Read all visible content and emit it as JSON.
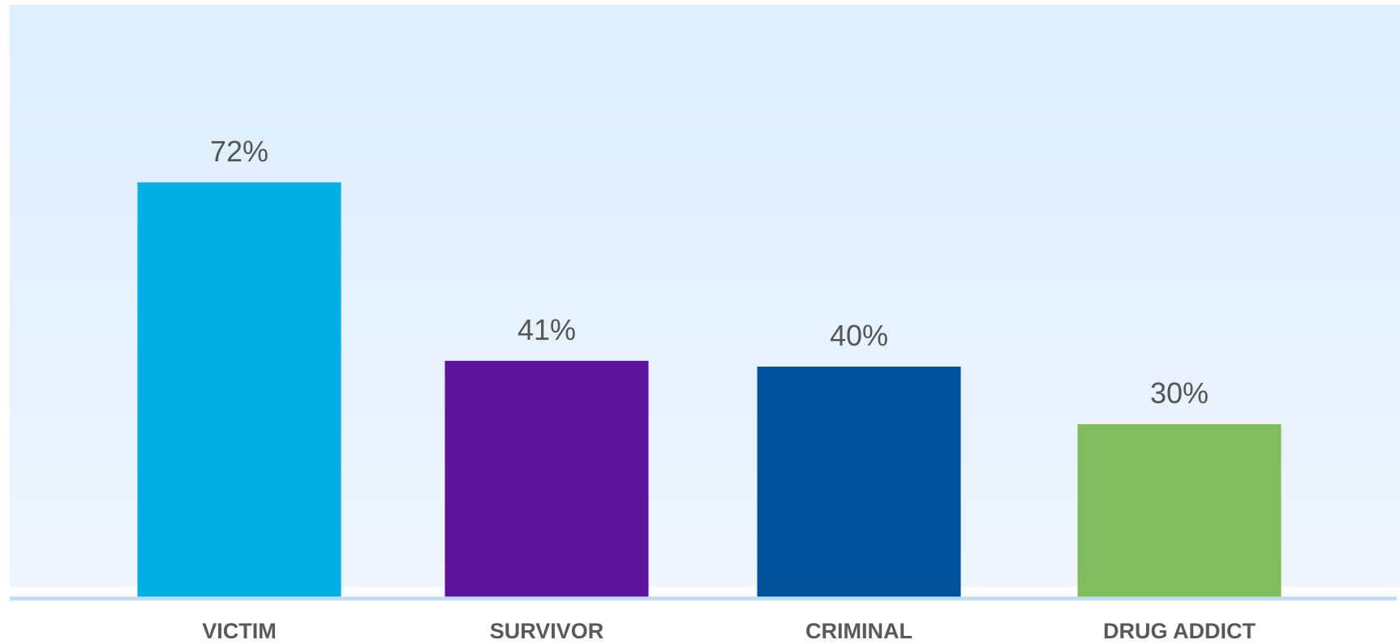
{
  "chart_data": {
    "type": "bar",
    "categories": [
      "VICTIM",
      "SURVIVOR",
      "CRIMINAL",
      "DRUG ADDICT"
    ],
    "values": [
      72,
      41,
      40,
      30
    ],
    "value_labels": [
      "72%",
      "41%",
      "40%",
      "30%"
    ],
    "colors": [
      "#00AEE6",
      "#5E139F",
      "#00519B",
      "#80BD5C"
    ],
    "background_gradient": [
      "#DCEDFE",
      "#EEF5FD"
    ],
    "baseline_color": "#BFDDF5",
    "ylim": [
      0,
      100
    ],
    "grid": false,
    "legend": "none"
  }
}
